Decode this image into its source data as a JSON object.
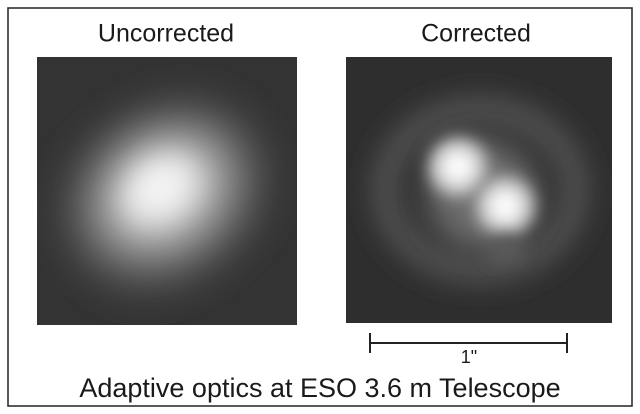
{
  "panels": [
    {
      "title": "Uncorrected"
    },
    {
      "title": "Corrected"
    }
  ],
  "scale_bar": {
    "label": "1\""
  },
  "caption": "Adaptive optics at ESO 3.6 m Telescope"
}
